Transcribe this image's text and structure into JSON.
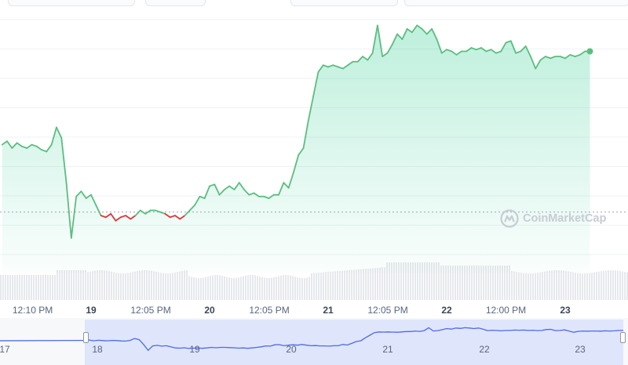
{
  "chart_data": {
    "type": "area",
    "baseline_price": 0.395,
    "ylim": [
      0.36,
      0.505
    ],
    "series": [
      {
        "points": [
          [
            "18 06:00",
            0.434
          ],
          [
            "18 07:00",
            0.436
          ],
          [
            "18 08:00",
            0.432
          ],
          [
            "18 09:00",
            0.435
          ],
          [
            "18 10:00",
            0.433
          ],
          [
            "18 11:00",
            0.432
          ],
          [
            "18 12:00",
            0.434
          ],
          [
            "18 13:00",
            0.433
          ],
          [
            "18 14:00",
            0.431
          ],
          [
            "18 15:00",
            0.43
          ],
          [
            "18 16:00",
            0.434
          ],
          [
            "18 17:00",
            0.444
          ],
          [
            "18 18:00",
            0.438
          ],
          [
            "18 19:00",
            0.412
          ],
          [
            "18 20:00",
            0.38
          ],
          [
            "18 21:00",
            0.404
          ],
          [
            "18 22:00",
            0.407
          ],
          [
            "18 23:00",
            0.403
          ],
          [
            "19 00:00",
            0.405
          ],
          [
            "19 01:00",
            0.399
          ],
          [
            "19 02:00",
            0.393
          ],
          [
            "19 03:00",
            0.392
          ],
          [
            "19 04:00",
            0.394
          ],
          [
            "19 05:00",
            0.39
          ],
          [
            "19 06:00",
            0.392
          ],
          [
            "19 07:00",
            0.393
          ],
          [
            "19 08:00",
            0.391
          ],
          [
            "19 09:00",
            0.393
          ],
          [
            "19 10:00",
            0.396
          ],
          [
            "19 11:00",
            0.394
          ],
          [
            "19 12:00",
            0.396
          ],
          [
            "19 13:00",
            0.396
          ],
          [
            "19 14:00",
            0.395
          ],
          [
            "19 15:00",
            0.394
          ],
          [
            "19 16:00",
            0.392
          ],
          [
            "19 17:00",
            0.393
          ],
          [
            "19 18:00",
            0.391
          ],
          [
            "19 19:00",
            0.393
          ],
          [
            "19 20:00",
            0.396
          ],
          [
            "19 21:00",
            0.399
          ],
          [
            "19 22:00",
            0.404
          ],
          [
            "19 23:00",
            0.403
          ],
          [
            "20 00:00",
            0.41
          ],
          [
            "20 01:00",
            0.411
          ],
          [
            "20 02:00",
            0.405
          ],
          [
            "20 03:00",
            0.408
          ],
          [
            "20 04:00",
            0.41
          ],
          [
            "20 05:00",
            0.408
          ],
          [
            "20 06:00",
            0.412
          ],
          [
            "20 07:00",
            0.408
          ],
          [
            "20 08:00",
            0.405
          ],
          [
            "20 09:00",
            0.406
          ],
          [
            "20 10:00",
            0.404
          ],
          [
            "20 11:00",
            0.404
          ],
          [
            "20 12:00",
            0.403
          ],
          [
            "20 13:00",
            0.405
          ],
          [
            "20 14:00",
            0.405
          ],
          [
            "20 15:00",
            0.412
          ],
          [
            "20 16:00",
            0.409
          ],
          [
            "20 17:00",
            0.418
          ],
          [
            "20 18:00",
            0.428
          ],
          [
            "20 19:00",
            0.432
          ],
          [
            "20 20:00",
            0.448
          ],
          [
            "20 21:00",
            0.462
          ],
          [
            "20 22:00",
            0.476
          ],
          [
            "20 23:00",
            0.48
          ],
          [
            "21 00:00",
            0.479
          ],
          [
            "21 01:00",
            0.48
          ],
          [
            "21 02:00",
            0.479
          ],
          [
            "21 03:00",
            0.478
          ],
          [
            "21 04:00",
            0.48
          ],
          [
            "21 05:00",
            0.482
          ],
          [
            "21 06:00",
            0.482
          ],
          [
            "21 07:00",
            0.485
          ],
          [
            "21 08:00",
            0.483
          ],
          [
            "21 09:00",
            0.487
          ],
          [
            "21 10:00",
            0.503
          ],
          [
            "21 11:00",
            0.485
          ],
          [
            "21 12:00",
            0.487
          ],
          [
            "21 13:00",
            0.492
          ],
          [
            "21 14:00",
            0.498
          ],
          [
            "21 15:00",
            0.495
          ],
          [
            "21 16:00",
            0.501
          ],
          [
            "21 17:00",
            0.499
          ],
          [
            "21 18:00",
            0.503
          ],
          [
            "21 19:00",
            0.501
          ],
          [
            "21 20:00",
            0.498
          ],
          [
            "21 21:00",
            0.501
          ],
          [
            "21 22:00",
            0.495
          ],
          [
            "21 23:00",
            0.487
          ],
          [
            "22 00:00",
            0.489
          ],
          [
            "22 01:00",
            0.488
          ],
          [
            "22 02:00",
            0.486
          ],
          [
            "22 03:00",
            0.488
          ],
          [
            "22 04:00",
            0.488
          ],
          [
            "22 05:00",
            0.49
          ],
          [
            "22 06:00",
            0.489
          ],
          [
            "22 07:00",
            0.49
          ],
          [
            "22 08:00",
            0.488
          ],
          [
            "22 09:00",
            0.489
          ],
          [
            "22 10:00",
            0.487
          ],
          [
            "22 11:00",
            0.488
          ],
          [
            "22 12:00",
            0.493
          ],
          [
            "22 13:00",
            0.494
          ],
          [
            "22 14:00",
            0.487
          ],
          [
            "22 15:00",
            0.488
          ],
          [
            "22 16:00",
            0.491
          ],
          [
            "22 17:00",
            0.485
          ],
          [
            "22 18:00",
            0.478
          ],
          [
            "22 19:00",
            0.483
          ],
          [
            "22 20:00",
            0.485
          ],
          [
            "22 21:00",
            0.484
          ],
          [
            "22 22:00",
            0.485
          ],
          [
            "22 23:00",
            0.485
          ],
          [
            "23 00:00",
            0.484
          ],
          [
            "23 01:00",
            0.486
          ],
          [
            "23 02:00",
            0.485
          ],
          [
            "23 03:00",
            0.486
          ],
          [
            "23 04:00",
            0.488
          ],
          [
            "23 05:00",
            0.488
          ]
        ]
      }
    ],
    "x_ticks": [
      {
        "t": "18 12:10",
        "label": "12:10 PM",
        "day": false
      },
      {
        "t": "19 00:00",
        "label": "19",
        "day": true
      },
      {
        "t": "19 12:05",
        "label": "12:05 PM",
        "day": false
      },
      {
        "t": "20 00:00",
        "label": "20",
        "day": true
      },
      {
        "t": "20 12:05",
        "label": "12:05 PM",
        "day": false
      },
      {
        "t": "21 00:00",
        "label": "21",
        "day": true
      },
      {
        "t": "21 12:05",
        "label": "12:05 PM",
        "day": false
      },
      {
        "t": "22 00:00",
        "label": "22",
        "day": true
      },
      {
        "t": "22 12:00",
        "label": "12:00 PM",
        "day": false
      },
      {
        "t": "23 00:00",
        "label": "23",
        "day": true
      }
    ],
    "navigator_ticks": [
      "17",
      "18",
      "19",
      "20",
      "21",
      "22",
      "23"
    ],
    "grid": true
  },
  "watermark": {
    "text": "CoinMarketCap"
  },
  "icons": {
    "watermark_logo": "coinmarketcap-logo-icon"
  },
  "colors": {
    "up": "#16c784",
    "up_line": "#5cbd7f",
    "down": "#ea3943",
    "down_line": "#d8393d",
    "navigator_line": "#4f6ae8",
    "navigator_fill": "#dfe5fb",
    "volume": "#e6e8ec",
    "grid": "#eff2f5",
    "baseline": "#9aa3b1"
  }
}
